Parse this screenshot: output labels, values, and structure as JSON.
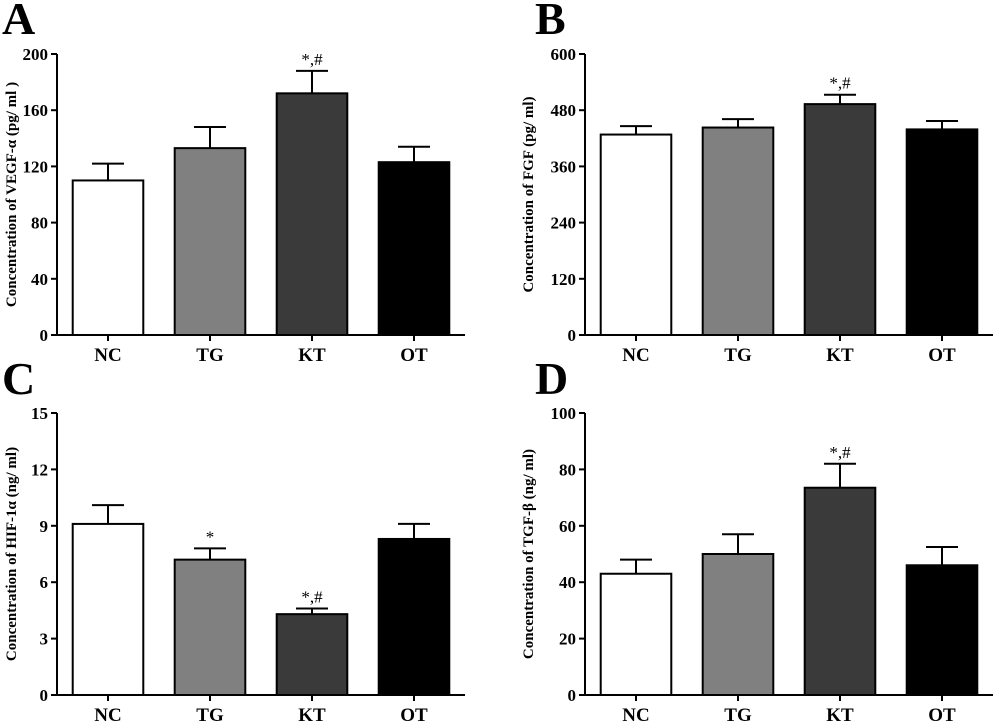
{
  "chart_data": [
    {
      "panel": "A",
      "type": "bar",
      "categories": [
        "NC",
        "TG",
        "KT",
        "OT"
      ],
      "values": [
        110,
        133,
        172,
        123
      ],
      "errors": [
        12,
        15,
        16,
        11
      ],
      "annotations": [
        "",
        "",
        "*,#",
        ""
      ],
      "bar_colors": [
        "#ffffff",
        "#808080",
        "#3a3a3a",
        "#000000"
      ],
      "ylabel": "Concentration of VEGF-α (pg/ ml )",
      "ylim": [
        0,
        200
      ],
      "yticks": [
        0,
        40,
        80,
        120,
        160,
        200
      ]
    },
    {
      "panel": "B",
      "type": "bar",
      "categories": [
        "NC",
        "TG",
        "KT",
        "OT"
      ],
      "values": [
        428,
        443,
        493,
        439
      ],
      "errors": [
        18,
        18,
        20,
        18
      ],
      "annotations": [
        "",
        "",
        "*,#",
        ""
      ],
      "bar_colors": [
        "#ffffff",
        "#808080",
        "#3a3a3a",
        "#000000"
      ],
      "ylabel": "Concentration of FGF (pg/ ml)",
      "ylim": [
        0,
        600
      ],
      "yticks": [
        0,
        120,
        240,
        360,
        480,
        600
      ]
    },
    {
      "panel": "C",
      "type": "bar",
      "categories": [
        "NC",
        "TG",
        "KT",
        "OT"
      ],
      "values": [
        9.1,
        7.2,
        4.3,
        8.3
      ],
      "errors": [
        1.0,
        0.6,
        0.3,
        0.8
      ],
      "annotations": [
        "",
        "*",
        "*,#",
        ""
      ],
      "bar_colors": [
        "#ffffff",
        "#808080",
        "#3a3a3a",
        "#000000"
      ],
      "ylabel": "Concentration of HIF-1α (ng/ ml)",
      "ylim": [
        0,
        15
      ],
      "yticks": [
        0,
        3,
        6,
        9,
        12,
        15
      ]
    },
    {
      "panel": "D",
      "type": "bar",
      "categories": [
        "NC",
        "TG",
        "KT",
        "OT"
      ],
      "values": [
        43,
        50,
        73.5,
        46
      ],
      "errors": [
        5,
        7,
        8.5,
        6.5
      ],
      "annotations": [
        "",
        "",
        "*,#",
        ""
      ],
      "bar_colors": [
        "#ffffff",
        "#808080",
        "#3a3a3a",
        "#000000"
      ],
      "ylabel": "Concentration of TGF-β (ng/ ml)",
      "ylim": [
        0,
        100
      ],
      "yticks": [
        0,
        20,
        40,
        60,
        80,
        100
      ]
    }
  ]
}
